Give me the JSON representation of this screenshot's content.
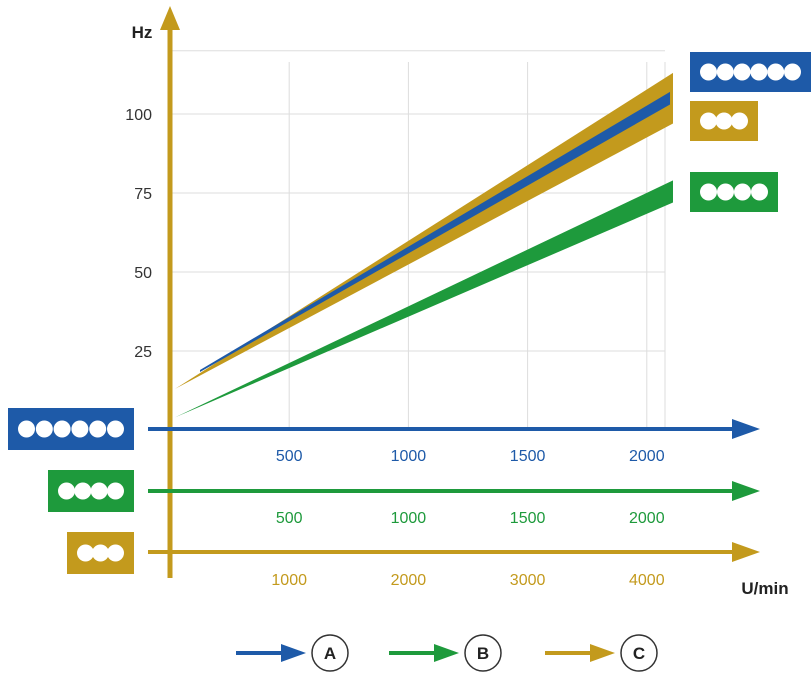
{
  "colors": {
    "blue": "#1e5aa8",
    "green": "#1e9a3c",
    "gold": "#c39a1d",
    "grid": "#dddddd",
    "text": "#222222"
  },
  "chart_data": {
    "type": "area",
    "ylabel": "Hz",
    "xlabel": "U/min",
    "ylim": [
      0,
      120
    ],
    "y_ticks": [
      "25",
      "50",
      "75",
      "100"
    ],
    "y_tick_values": [
      25,
      50,
      75,
      100
    ],
    "grid": true,
    "axes": [
      {
        "color": "blue",
        "dots": 6,
        "ticks": [
          "500",
          "1000",
          "1500",
          "2000"
        ],
        "tick_values": [
          500,
          1000,
          1500,
          2000
        ]
      },
      {
        "color": "green",
        "dots": 4,
        "ticks": [
          "500",
          "1000",
          "1500",
          "2000"
        ],
        "tick_values": [
          500,
          1000,
          1500,
          2000
        ]
      },
      {
        "color": "gold",
        "dots": 3,
        "ticks": [
          "1000",
          "2000",
          "3000",
          "4000"
        ],
        "tick_values": [
          1000,
          2000,
          3000,
          4000
        ]
      }
    ],
    "series": [
      {
        "color": "gold",
        "dots": 3,
        "x": [
          4200,
          4200
        ],
        "x_range": [
          400,
          4200
        ],
        "y_low": [
          13,
          97
        ],
        "y_high": [
          13,
          113
        ]
      },
      {
        "color": "blue",
        "dots": 6,
        "x_range": [
          200,
          2100
        ],
        "y_low": [
          13,
          103
        ],
        "y_high": [
          13,
          107
        ]
      },
      {
        "color": "green",
        "dots": 4,
        "x_range": [
          0,
          2100
        ],
        "y_low": [
          4,
          72
        ],
        "y_high": [
          4,
          79
        ]
      }
    ],
    "legend": [
      {
        "color": "blue",
        "label": "A"
      },
      {
        "color": "green",
        "label": "B"
      },
      {
        "color": "gold",
        "label": "C"
      }
    ]
  }
}
